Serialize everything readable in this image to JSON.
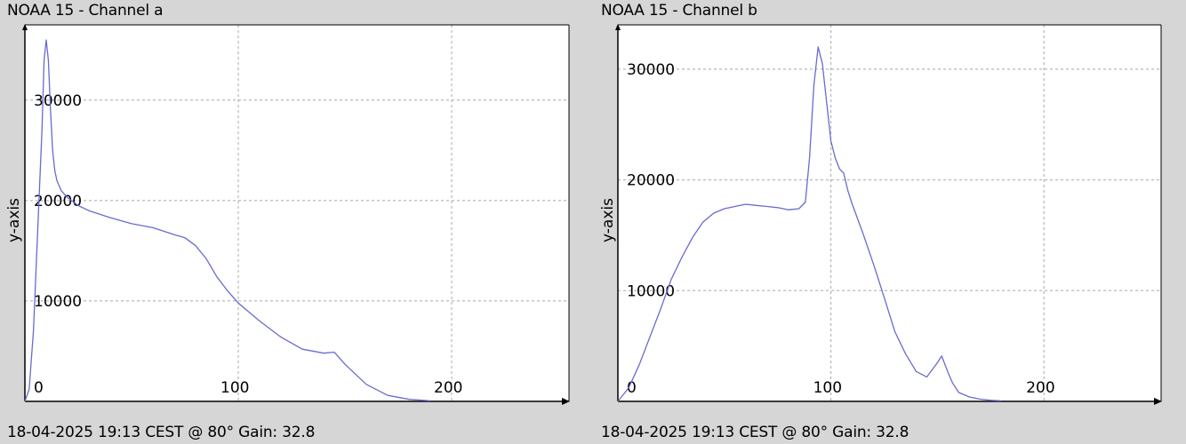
{
  "panels": [
    {
      "title": "NOAA 15 - Channel a",
      "footer": "18-04-2025 19:13 CEST @ 80° Gain: 32.8",
      "ylabel": "y-axis"
    },
    {
      "title": "NOAA 15 - Channel b",
      "footer": "18-04-2025 19:13 CEST @ 80° Gain: 32.8",
      "ylabel": "y-axis"
    }
  ],
  "chart_data": [
    {
      "type": "line",
      "title": "NOAA 15 - Channel a",
      "ylabel": "y-axis",
      "xlim": [
        0,
        255
      ],
      "ylim": [
        0,
        37500
      ],
      "xticks": [
        0,
        100,
        200
      ],
      "yticks": [
        10000,
        20000,
        30000
      ],
      "grid": true,
      "line_color": "#6a6ad0",
      "series": [
        {
          "x": [
            0,
            2,
            4,
            6,
            8,
            9,
            10,
            11,
            12,
            13,
            14,
            15,
            17,
            20,
            25,
            30,
            40,
            50,
            60,
            70,
            75,
            80,
            85,
            90,
            95,
            100,
            110,
            120,
            130,
            140,
            145,
            150,
            160,
            170,
            180,
            190
          ],
          "y": [
            0,
            1200,
            7000,
            17000,
            27000,
            34000,
            36000,
            34000,
            29000,
            25000,
            23000,
            22000,
            21000,
            20300,
            19500,
            19000,
            18300,
            17700,
            17300,
            16600,
            16300,
            15500,
            14200,
            12400,
            11000,
            9800,
            8000,
            6400,
            5200,
            4800,
            4900,
            3700,
            1700,
            600,
            200,
            50
          ]
        }
      ]
    },
    {
      "type": "line",
      "title": "NOAA 15 - Channel b",
      "ylabel": "y-axis",
      "xlim": [
        0,
        255
      ],
      "ylim": [
        0,
        34000
      ],
      "xticks": [
        0,
        100,
        200
      ],
      "yticks": [
        10000,
        20000,
        30000
      ],
      "grid": true,
      "line_color": "#6a6ad0",
      "series": [
        {
          "x": [
            0,
            5,
            10,
            15,
            20,
            25,
            30,
            35,
            40,
            45,
            50,
            55,
            60,
            65,
            70,
            75,
            80,
            85,
            88,
            90,
            92,
            94,
            96,
            98,
            100,
            102,
            104,
            106,
            108,
            110,
            115,
            120,
            125,
            130,
            135,
            140,
            145,
            150,
            152,
            155,
            157,
            160,
            165,
            170,
            175,
            180
          ],
          "y": [
            0,
            1200,
            3300,
            5800,
            8300,
            11000,
            13000,
            14800,
            16200,
            17000,
            17400,
            17600,
            17800,
            17700,
            17600,
            17500,
            17300,
            17400,
            18000,
            22000,
            28500,
            32000,
            30500,
            27000,
            23500,
            22000,
            21000,
            20600,
            19000,
            17800,
            15200,
            12400,
            9400,
            6300,
            4300,
            2700,
            2200,
            3500,
            4100,
            2600,
            1700,
            800,
            400,
            200,
            100,
            50
          ]
        }
      ]
    }
  ]
}
